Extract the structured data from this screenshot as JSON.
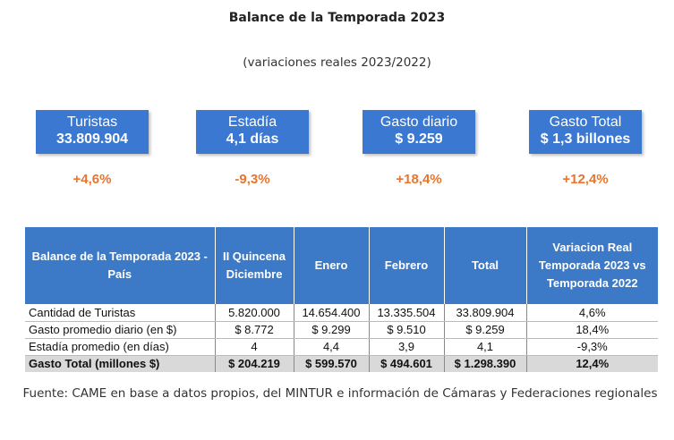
{
  "title": "Balance de la Temporada 2023",
  "subtitle": "(variaciones reales 2023/2022)",
  "kpis": [
    {
      "label": "Turistas",
      "value": "33.809.904",
      "variation": "+4,6%"
    },
    {
      "label": "Estadía",
      "value": "4,1 días",
      "variation": "-9,3%"
    },
    {
      "label": "Gasto diario",
      "value": "$ 9.259",
      "variation": "+18,4%"
    },
    {
      "label": "Gasto Total",
      "value": "$ 1,3 billones",
      "variation": "+12,4%"
    }
  ],
  "table": {
    "headers": [
      "Balance de la Temporada 2023 - País",
      "II Quincena Diciembre",
      "Enero",
      "Febrero",
      "Total",
      "Variacion Real Temporada 2023 vs Temporada 2022"
    ],
    "rows": [
      [
        "Cantidad de Turistas",
        "5.820.000",
        "14.654.400",
        "13.335.504",
        "33.809.904",
        "4,6%"
      ],
      [
        "Gasto promedio diario (en $)",
        "$ 8.772",
        "$ 9.299",
        "$ 9.510",
        "$ 9.259",
        "18,4%"
      ],
      [
        "Estadía promedio (en días)",
        "4",
        "4,4",
        "3,9",
        "4,1",
        "-9,3%"
      ],
      [
        "Gasto Total (millones $)",
        "$ 204.219",
        "$ 599.570",
        "$ 494.601",
        "$ 1.298.390",
        "12,4%"
      ]
    ]
  },
  "source": "Fuente: CAME en base a datos propios, del MINTUR e información de Cámaras y Federaciones regionales",
  "colors": {
    "kpi_bg": "#3a78d1",
    "variation": "#e8742e",
    "header_bg": "#3c79c7",
    "total_row_bg": "#d9d9d9"
  }
}
